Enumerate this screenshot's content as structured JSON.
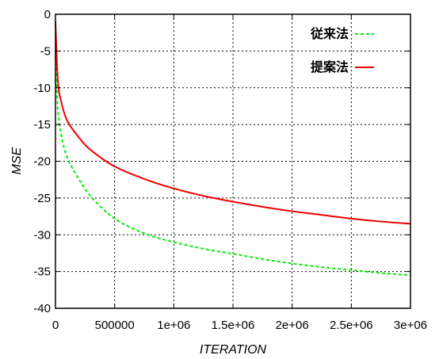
{
  "chart_data": {
    "type": "line",
    "title": "",
    "xlabel": "ITERATION",
    "ylabel": "MSE",
    "xlim": [
      0,
      3000000
    ],
    "ylim": [
      -40,
      0
    ],
    "grid": true,
    "legend_position": "top-right",
    "x_ticks": [
      {
        "value": 0,
        "label": "0"
      },
      {
        "value": 500000,
        "label": "500000"
      },
      {
        "value": 1000000,
        "label": "1e+06"
      },
      {
        "value": 1500000,
        "label": "1.5e+06"
      },
      {
        "value": 2000000,
        "label": "2e+06"
      },
      {
        "value": 2500000,
        "label": "2.5e+06"
      },
      {
        "value": 3000000,
        "label": "3e+06"
      }
    ],
    "y_ticks": [
      {
        "value": 0,
        "label": "0"
      },
      {
        "value": -5,
        "label": "-5"
      },
      {
        "value": -10,
        "label": "-10"
      },
      {
        "value": -15,
        "label": "-15"
      },
      {
        "value": -20,
        "label": "-20"
      },
      {
        "value": -25,
        "label": "-25"
      },
      {
        "value": -30,
        "label": "-30"
      },
      {
        "value": -35,
        "label": "-35"
      },
      {
        "value": -40,
        "label": "-40"
      }
    ],
    "series": [
      {
        "name": "従来法",
        "color": "#00ee00",
        "style": "dashed",
        "x": [
          0,
          20000,
          50000,
          100000,
          200000,
          300000,
          500000,
          750000,
          1000000,
          1250000,
          1500000,
          1750000,
          2000000,
          2250000,
          2500000,
          2750000,
          3000000
        ],
        "y": [
          -5,
          -13,
          -16.5,
          -19.5,
          -22.5,
          -24.8,
          -27.8,
          -29.8,
          -31,
          -31.9,
          -32.6,
          -33.3,
          -33.9,
          -34.4,
          -34.8,
          -35.2,
          -35.5
        ]
      },
      {
        "name": "提案法",
        "color": "#ee0000",
        "style": "solid",
        "x": [
          0,
          20000,
          50000,
          100000,
          200000,
          300000,
          500000,
          750000,
          1000000,
          1250000,
          1500000,
          1750000,
          2000000,
          2250000,
          2500000,
          2750000,
          3000000
        ],
        "y": [
          -1,
          -9,
          -12,
          -14.5,
          -16.8,
          -18.5,
          -20.7,
          -22.4,
          -23.7,
          -24.7,
          -25.5,
          -26.2,
          -26.8,
          -27.3,
          -27.8,
          -28.2,
          -28.5
        ]
      }
    ]
  }
}
